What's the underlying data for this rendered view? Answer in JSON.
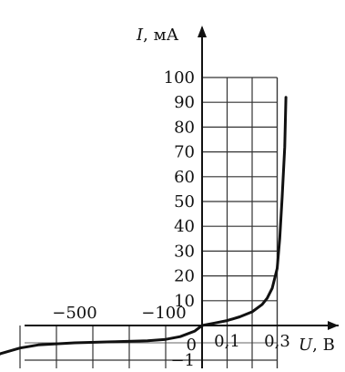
{
  "chart_data": {
    "type": "line",
    "title": "",
    "xlabel_var": "U",
    "xlabel_unit": ", В",
    "ylabel_var": "I",
    "ylabel_unit": ", мА",
    "grid": true,
    "x_scale": "piecewise: reverse branch in V (-500…0), forward branch 0…0.3 V",
    "y_scale": "piecewise: positive branch 0…100 mA, negative branch in 0…−1 mA",
    "x_tick_labels": [
      "−500",
      "−100",
      "0",
      "0,1",
      "0,3"
    ],
    "y_tick_labels": [
      "100",
      "90",
      "80",
      "70",
      "60",
      "50",
      "40",
      "30",
      "20",
      "10",
      "−1"
    ],
    "series": [
      {
        "points": [
          {
            "x": -600,
            "y": -1.05
          },
          {
            "x": -580,
            "y": -0.92
          },
          {
            "x": -550,
            "y": -0.8
          },
          {
            "x": -500,
            "y": -0.65
          },
          {
            "x": -450,
            "y": -0.56
          },
          {
            "x": -350,
            "y": -0.5
          },
          {
            "x": -250,
            "y": -0.47
          },
          {
            "x": -150,
            "y": -0.44
          },
          {
            "x": -100,
            "y": -0.4
          },
          {
            "x": -60,
            "y": -0.32
          },
          {
            "x": -20,
            "y": -0.16
          },
          {
            "x": 0,
            "y": 0
          },
          {
            "x": 0.05,
            "y": 1
          },
          {
            "x": 0.1,
            "y": 2
          },
          {
            "x": 0.15,
            "y": 3.5
          },
          {
            "x": 0.2,
            "y": 5.5
          },
          {
            "x": 0.24,
            "y": 8.5
          },
          {
            "x": 0.26,
            "y": 11
          },
          {
            "x": 0.28,
            "y": 15
          },
          {
            "x": 0.3,
            "y": 23
          },
          {
            "x": 0.31,
            "y": 35
          },
          {
            "x": 0.32,
            "y": 52
          },
          {
            "x": 0.33,
            "y": 72
          },
          {
            "x": 0.335,
            "y": 92
          }
        ]
      }
    ]
  }
}
